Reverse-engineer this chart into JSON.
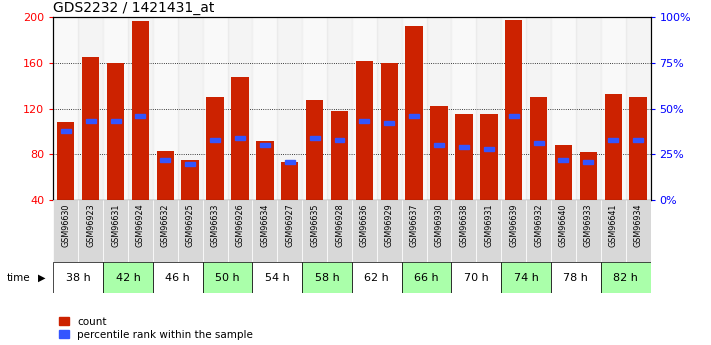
{
  "title": "GDS2232 / 1421431_at",
  "samples": [
    "GSM96630",
    "GSM96923",
    "GSM96631",
    "GSM96924",
    "GSM96632",
    "GSM96925",
    "GSM96633",
    "GSM96926",
    "GSM96634",
    "GSM96927",
    "GSM96635",
    "GSM96928",
    "GSM96636",
    "GSM96929",
    "GSM96637",
    "GSM96930",
    "GSM96638",
    "GSM96931",
    "GSM96639",
    "GSM96932",
    "GSM96640",
    "GSM96933",
    "GSM96641",
    "GSM96934"
  ],
  "counts": [
    108,
    165,
    160,
    197,
    83,
    75,
    130,
    148,
    92,
    73,
    128,
    118,
    162,
    160,
    192,
    122,
    115,
    115,
    198,
    130,
    88,
    82,
    133,
    130
  ],
  "percentiles": [
    38,
    43,
    43,
    46,
    22,
    20,
    33,
    34,
    30,
    21,
    34,
    33,
    43,
    42,
    46,
    30,
    29,
    28,
    46,
    31,
    22,
    21,
    33,
    33
  ],
  "time_groups": [
    {
      "label": "38 h",
      "samples": [
        "GSM96630",
        "GSM96923"
      ],
      "color": "#ffffff"
    },
    {
      "label": "42 h",
      "samples": [
        "GSM96631",
        "GSM96924"
      ],
      "color": "#aaffaa"
    },
    {
      "label": "46 h",
      "samples": [
        "GSM96632",
        "GSM96925"
      ],
      "color": "#ffffff"
    },
    {
      "label": "50 h",
      "samples": [
        "GSM96633",
        "GSM96926"
      ],
      "color": "#aaffaa"
    },
    {
      "label": "54 h",
      "samples": [
        "GSM96634",
        "GSM96927"
      ],
      "color": "#ffffff"
    },
    {
      "label": "58 h",
      "samples": [
        "GSM96635",
        "GSM96928"
      ],
      "color": "#aaffaa"
    },
    {
      "label": "62 h",
      "samples": [
        "GSM96636",
        "GSM96929"
      ],
      "color": "#ffffff"
    },
    {
      "label": "66 h",
      "samples": [
        "GSM96637",
        "GSM96930"
      ],
      "color": "#aaffaa"
    },
    {
      "label": "70 h",
      "samples": [
        "GSM96638",
        "GSM96931"
      ],
      "color": "#ffffff"
    },
    {
      "label": "74 h",
      "samples": [
        "GSM96639",
        "GSM96932"
      ],
      "color": "#aaffaa"
    },
    {
      "label": "78 h",
      "samples": [
        "GSM96640",
        "GSM96933"
      ],
      "color": "#ffffff"
    },
    {
      "label": "82 h",
      "samples": [
        "GSM96641",
        "GSM96934"
      ],
      "color": "#aaffaa"
    }
  ],
  "ylim_left": [
    40,
    200
  ],
  "ylim_right": [
    0,
    100
  ],
  "yticks_left": [
    40,
    80,
    120,
    160,
    200
  ],
  "yticks_right": [
    0,
    25,
    50,
    75,
    100
  ],
  "bar_color": "#cc2200",
  "percentile_color": "#3355ff",
  "title_fontsize": 10,
  "legend_count_label": "count",
  "legend_percentile_label": "percentile rank within the sample",
  "col_bg_gray": "#e0e0e0",
  "col_bg_white": "#f0f0f0"
}
